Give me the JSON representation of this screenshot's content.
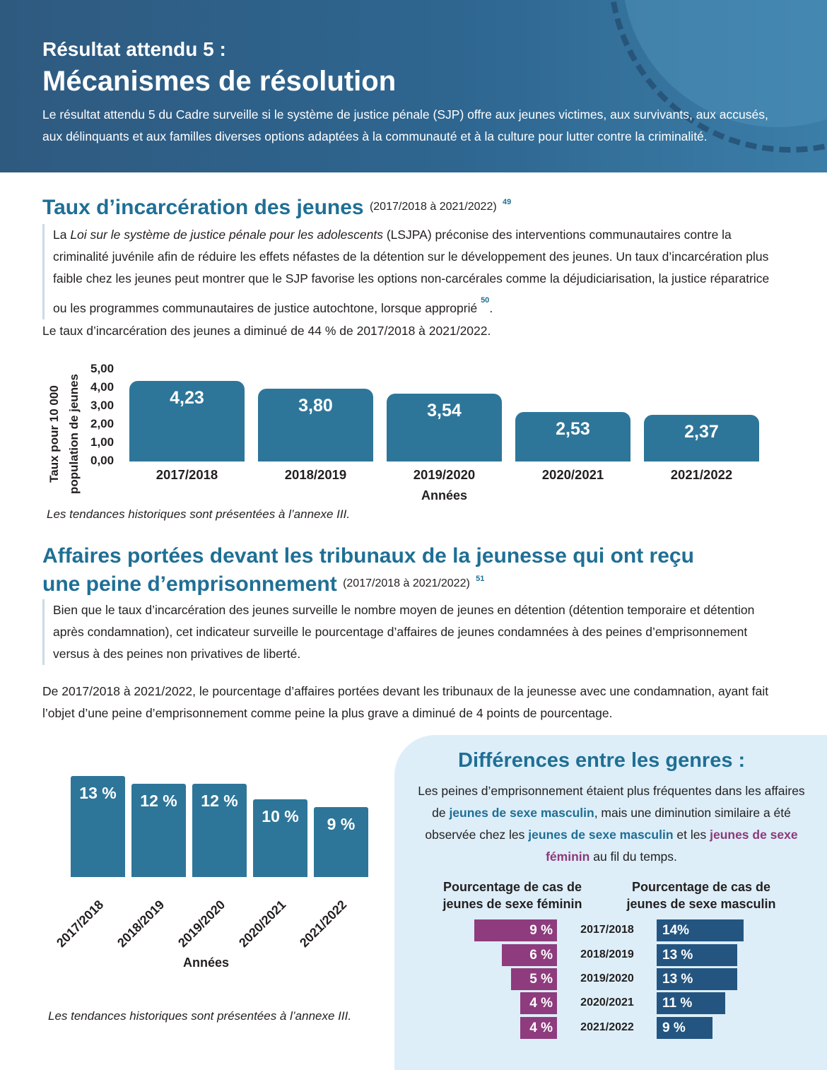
{
  "header": {
    "kicker": "Résultat attendu 5 :",
    "title": "Mécanismes de résolution",
    "intro": "Le résultat attendu 5 du Cadre surveille si le système de justice pénale (SJP) offre aux jeunes victimes, aux survivants, aux accusés, aux délinquants et aux familles diverses options adaptées à la communauté et à la culture pour lutter contre la criminalité."
  },
  "section1": {
    "title": "Taux d’incarcération des jeunes",
    "range": "(2017/2018 à 2021/2022)",
    "ref": "49",
    "quote_part1": "La ",
    "quote_italic": "Loi sur le système de justice pénale pour les adolescents",
    "quote_part2": " (LSJPA) préconise des interventions communautaires contre la criminalité juvénile afin de réduire les effets néfastes de la détention sur le développement des jeunes. Un taux d’incarcération plus faible chez les jeunes peut montrer que le SJP favorise les options non-carcérales comme la déjudiciarisation, la justice réparatrice ou les programmes communautaires de justice autochtone, lorsque approprié",
    "quote_ref": "50",
    "quote_end": ".",
    "summary": "Le taux d’incarcération des jeunes a diminué de 44 % de 2017/2018 à 2021/2022.",
    "note": "Les tendances historiques sont présentées à l’annexe III."
  },
  "section2": {
    "title_line1": "Affaires portées devant les tribunaux de la jeunesse qui ont reçu",
    "title_line2": "une peine d’emprisonnement",
    "range": "(2017/2018 à 2021/2022)",
    "ref": "51",
    "quote": "Bien que le taux d’incarcération des jeunes surveille le nombre moyen de jeunes en détention (détention temporaire et détention après condamnation), cet indicateur surveille le pourcentage d’affaires de jeunes condamnées à des peines d’emprisonnement versus à des peines non privatives de liberté.",
    "summary": "De 2017/2018 à 2021/2022, le pourcentage d’affaires portées devant les tribunaux de la jeunesse avec une condamnation, ayant fait l’objet d’une peine d’emprisonnement comme peine la plus grave a diminué de 4 points de pourcentage.",
    "note": "Les tendances historiques sont présentées à l’annexe III."
  },
  "gender": {
    "title": "Différences entre les genres :",
    "t1": "Les peines d’emprisonnement étaient plus fréquentes dans les affaires de ",
    "m1": "jeunes de sexe masculin",
    "t2": ", mais une diminution similaire a été observée chez les ",
    "m2": "jeunes de sexe masculin",
    "t3": " et les ",
    "f1": "jeunes de sexe féminin",
    "t4": " au fil du temps.",
    "female_header_1": "Pourcentage de cas de",
    "female_header_2": "jeunes de sexe féminin",
    "male_header_1": "Pourcentage de cas de",
    "male_header_2": "jeunes de sexe masculin"
  },
  "chart_data": [
    {
      "type": "bar",
      "ylabel_line1": "Taux pour 10 000",
      "ylabel_line2": "population de jeunes",
      "xlabel": "Années",
      "categories": [
        "2017/2018",
        "2018/2019",
        "2019/2020",
        "2020/2021",
        "2021/2022"
      ],
      "values": [
        4.23,
        3.8,
        3.54,
        2.53,
        2.37
      ],
      "value_labels": [
        "4,23",
        "3,80",
        "3,54",
        "2,53",
        "2,37"
      ],
      "yticks": [
        "5,00",
        "4,00",
        "3,00",
        "2,00",
        "1,00",
        "0,00"
      ],
      "ylim": [
        0,
        5
      ],
      "color": "#2e7699"
    },
    {
      "type": "bar",
      "xlabel": "Années",
      "categories": [
        "2017/2018",
        "2018/2019",
        "2019/2020",
        "2020/2021",
        "2021/2022"
      ],
      "values": [
        13,
        12,
        12,
        10,
        9
      ],
      "value_labels": [
        "13 %",
        "12 %",
        "12 %",
        "10 %",
        "9 %"
      ],
      "color": "#2e7699"
    },
    {
      "type": "bar",
      "categories": [
        "2017/2018",
        "2018/2019",
        "2019/2020",
        "2020/2021",
        "2021/2022"
      ],
      "series": [
        {
          "name": "Pourcentage de cas de jeunes de sexe féminin",
          "values": [
            9,
            6,
            5,
            4,
            4
          ],
          "value_labels": [
            "9 %",
            "6 %",
            "5 %",
            "4 %",
            "4 %"
          ],
          "color": "#8e3c7e"
        },
        {
          "name": "Pourcentage de cas de jeunes de sexe masculin",
          "values": [
            14,
            13,
            13,
            11,
            9
          ],
          "value_labels": [
            "14%",
            "13 %",
            "13 %",
            "11 %",
            "9 %"
          ],
          "color": "#245580"
        }
      ]
    }
  ]
}
